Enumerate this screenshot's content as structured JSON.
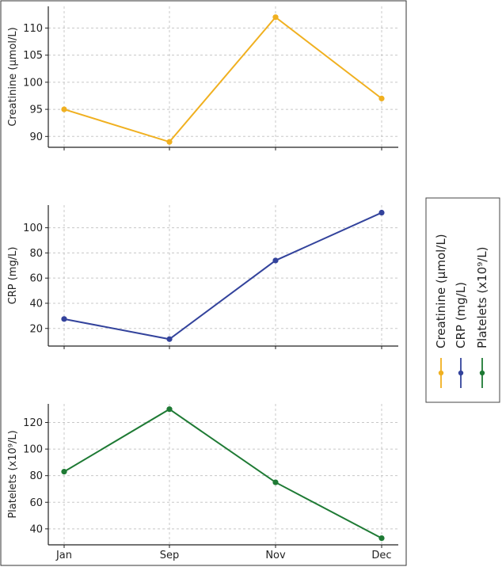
{
  "chart_data": {
    "type": "line",
    "categories": [
      "Jan",
      "Sep",
      "Nov",
      "Dec"
    ],
    "grid": true,
    "legend_position": "right",
    "panels": [
      {
        "key": "creatinine",
        "ylabel": "Creatinine (μmol/L)",
        "ylim": [
          88,
          114
        ],
        "yticks": [
          90,
          95,
          100,
          105,
          110
        ],
        "color": "#f0b020",
        "values": [
          95,
          89,
          112,
          97
        ],
        "legend": "Creatinine (μmol/L)"
      },
      {
        "key": "crp",
        "ylabel": "CRP (mg/L)",
        "ylim": [
          6,
          118
        ],
        "yticks": [
          20,
          40,
          60,
          80,
          100
        ],
        "color": "#33439c",
        "values": [
          27.5,
          11.5,
          74,
          112
        ],
        "legend": "CRP (mg/L)"
      },
      {
        "key": "platelets",
        "ylabel": "Platelets (x10⁹/L)",
        "ylim": [
          28,
          134
        ],
        "yticks": [
          40,
          60,
          80,
          100,
          120
        ],
        "color": "#1e7a34",
        "values": [
          83,
          130,
          75,
          33
        ],
        "legend": "Platelets (x10⁹/L)"
      }
    ]
  }
}
